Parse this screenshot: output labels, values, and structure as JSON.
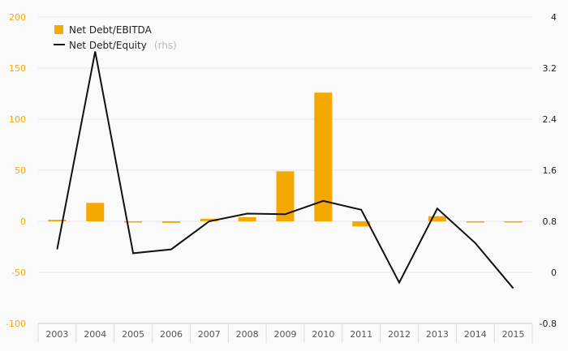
{
  "chart_data": {
    "type": "bar",
    "categories": [
      "2003",
      "2004",
      "2005",
      "2006",
      "2007",
      "2008",
      "2009",
      "2010",
      "2011",
      "2012",
      "2013",
      "2014",
      "2015"
    ],
    "series": [
      {
        "name": "Net Debt/EBITDA",
        "type": "bar",
        "axis": "left",
        "color": "#f5a800",
        "values": [
          1.5,
          18,
          -1,
          -1.5,
          2.5,
          4,
          49,
          126,
          -5,
          0,
          5,
          -1,
          -0.5
        ]
      },
      {
        "name": "Net Debt/Equity",
        "type": "line",
        "axis": "right",
        "color": "#111111",
        "values": [
          0.36,
          3.46,
          0.3,
          0.36,
          0.8,
          0.92,
          0.91,
          1.12,
          0.98,
          -0.16,
          1.0,
          0.46,
          -0.25
        ]
      }
    ],
    "y_left": {
      "min": -100,
      "max": 200,
      "ticks": [
        "200",
        "150",
        "100",
        "50",
        "0",
        "-50",
        "-100"
      ],
      "tick_values": [
        200,
        150,
        100,
        50,
        0,
        -50,
        -100
      ]
    },
    "y_right": {
      "min": -0.8,
      "max": 4,
      "ticks": [
        "4",
        "3.2",
        "2.4",
        "1.6",
        "0.8",
        "0",
        "-0.8"
      ],
      "tick_values": [
        4,
        3.2,
        2.4,
        1.6,
        0.8,
        0,
        -0.8
      ]
    },
    "legend": {
      "position": "top-left",
      "items": [
        {
          "label": "Net Debt/EBITDA",
          "note": ""
        },
        {
          "label": "Net Debt/Equity",
          "note": "(rhs)"
        }
      ]
    },
    "grid": true
  }
}
